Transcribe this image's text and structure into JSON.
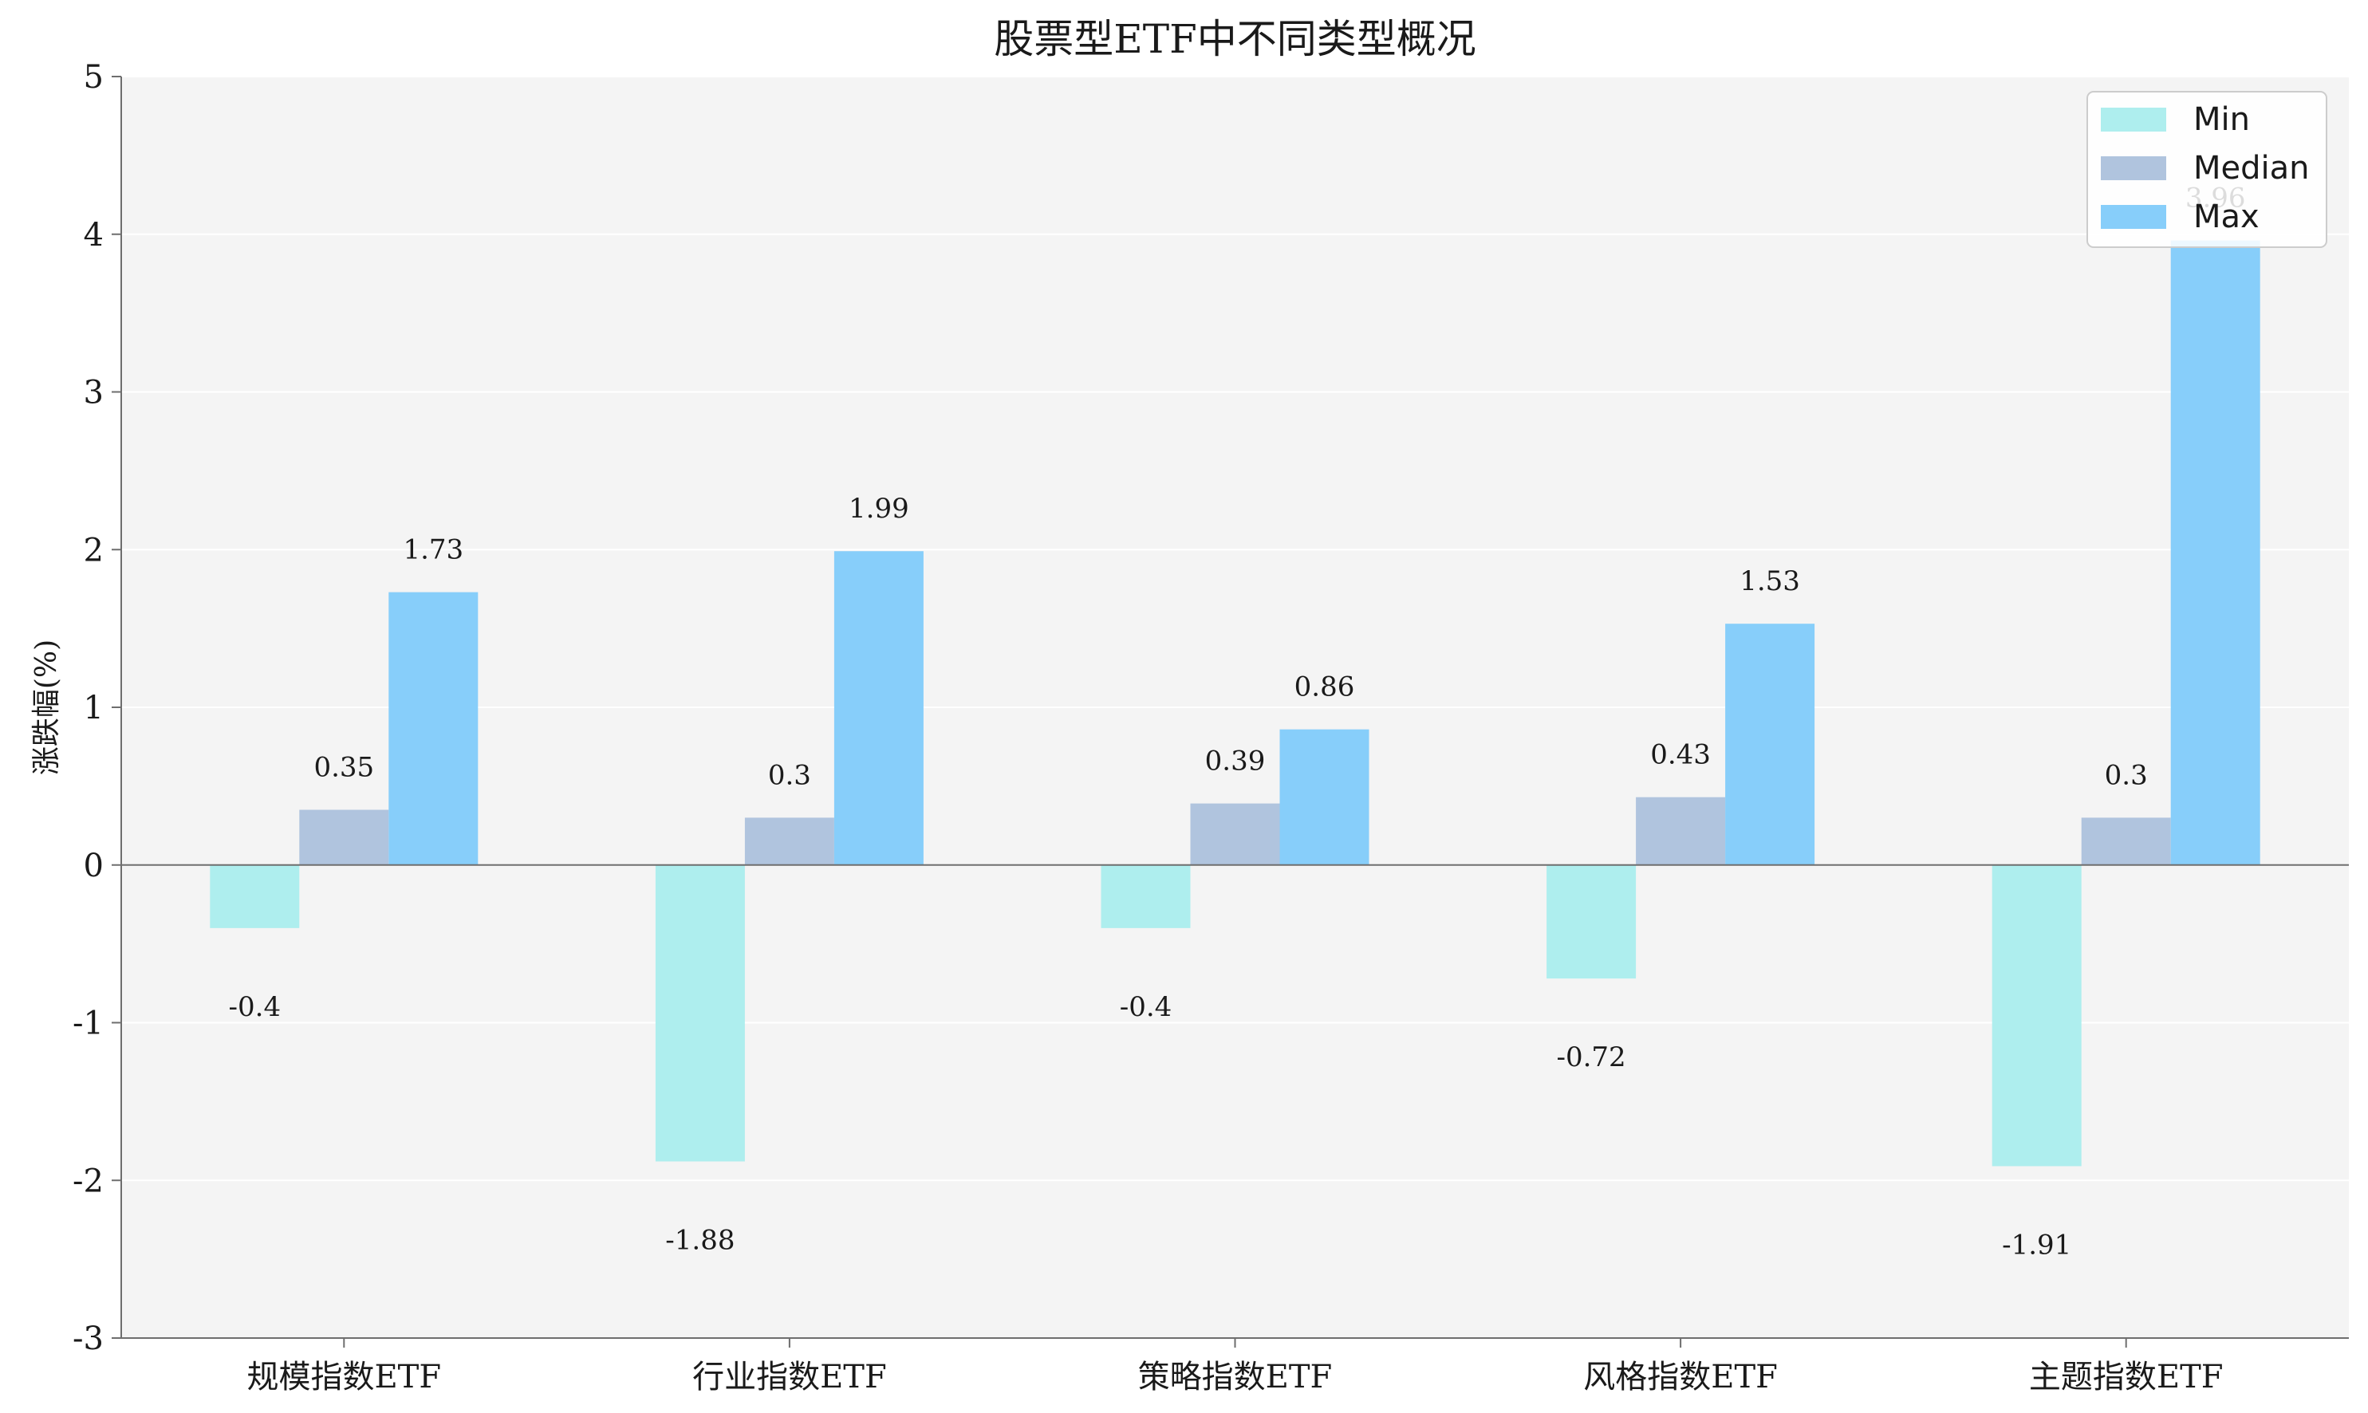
{
  "chart_data": {
    "type": "bar",
    "title": "股票型ETF中不同类型概况",
    "xlabel": "",
    "ylabel": "涨跌幅(%)",
    "ylim": [
      -3,
      5
    ],
    "yticks": [
      5,
      4,
      3,
      2,
      1,
      0,
      -1,
      -2,
      -3
    ],
    "ytick_labels": [
      "5",
      "4",
      "3",
      "2",
      "1",
      "0",
      "-1",
      "-2",
      "-3"
    ],
    "categories": [
      "规模指数ETF",
      "行业指数ETF",
      "策略指数ETF",
      "风格指数ETF",
      "主题指数ETF"
    ],
    "series": [
      {
        "name": "Min",
        "values": [
          -0.4,
          -1.88,
          -0.4,
          -0.72,
          -1.91
        ],
        "labels": [
          "-0.4",
          "-1.88",
          "-0.4",
          "-0.72",
          "-1.91"
        ]
      },
      {
        "name": "Median",
        "values": [
          0.35,
          0.3,
          0.39,
          0.43,
          0.3
        ],
        "labels": [
          "0.35",
          "0.3",
          "0.39",
          "0.43",
          "0.3"
        ]
      },
      {
        "name": "Max",
        "values": [
          1.73,
          1.99,
          0.86,
          1.53,
          3.96
        ],
        "labels": [
          "1.73",
          "1.99",
          "0.86",
          "1.53",
          "3.96"
        ]
      }
    ],
    "grid": true,
    "legend_position": "top-right"
  },
  "colors": {
    "Min": "#aeeeee",
    "Median": "#b0c4de",
    "Max": "#87cefa",
    "plot_background": "#f4f4f4",
    "grid": "#ffffff",
    "axis": "#6e6e6e"
  }
}
